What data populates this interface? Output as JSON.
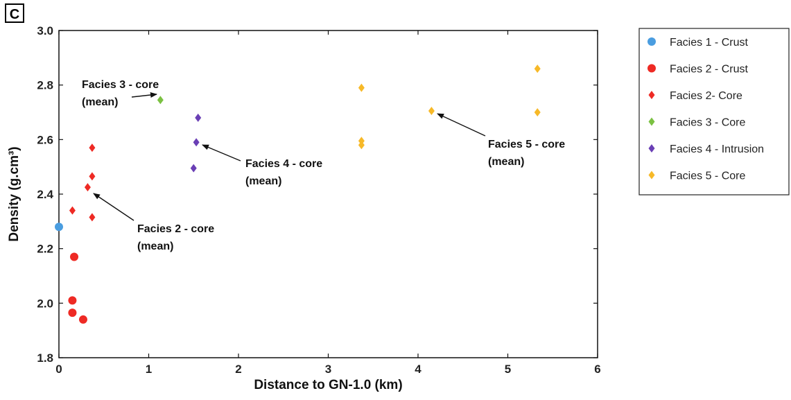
{
  "panel_label": "C",
  "chart_data": {
    "type": "scatter",
    "title": "",
    "xlabel": "Distance to GN-1.0 (km)",
    "ylabel": "Density (g.cm³)",
    "xlim": [
      0,
      6
    ],
    "ylim": [
      1.8,
      3.0
    ],
    "xticks": [
      0,
      1,
      2,
      3,
      4,
      5,
      6
    ],
    "yticks": [
      1.8,
      2.0,
      2.2,
      2.4,
      2.6,
      2.8,
      3.0
    ],
    "xtick_labels": [
      "0",
      "1",
      "2",
      "3",
      "4",
      "5",
      "6"
    ],
    "ytick_labels": [
      "1.8",
      "2.0",
      "2.2",
      "2.4",
      "2.6",
      "2.8",
      "3.0"
    ],
    "grid": false,
    "legend_position": "right",
    "series": [
      {
        "name": "Facies 1 - Crust",
        "marker": "circle",
        "color": "#4a9de0",
        "points": [
          {
            "x": 0.0,
            "y": 2.28
          }
        ]
      },
      {
        "name": "Facies 2 - Crust",
        "marker": "circle",
        "color": "#ee2a24",
        "points": [
          {
            "x": 0.17,
            "y": 2.17
          },
          {
            "x": 0.15,
            "y": 2.01
          },
          {
            "x": 0.15,
            "y": 1.965
          },
          {
            "x": 0.27,
            "y": 1.94
          }
        ]
      },
      {
        "name": "Facies 2- Core",
        "marker": "diamond",
        "color": "#ee2a24",
        "points": [
          {
            "x": 0.37,
            "y": 2.57
          },
          {
            "x": 0.37,
            "y": 2.465
          },
          {
            "x": 0.32,
            "y": 2.425
          },
          {
            "x": 0.15,
            "y": 2.34
          },
          {
            "x": 0.37,
            "y": 2.315
          }
        ]
      },
      {
        "name": "Facies 3 - Core",
        "marker": "diamond",
        "color": "#7bc142",
        "points": [
          {
            "x": 1.13,
            "y": 2.745
          }
        ]
      },
      {
        "name": "Facies 4 - Intrusion",
        "marker": "diamond",
        "color": "#6a3fb5",
        "points": [
          {
            "x": 1.55,
            "y": 2.68
          },
          {
            "x": 1.53,
            "y": 2.59
          },
          {
            "x": 1.5,
            "y": 2.495
          }
        ]
      },
      {
        "name": "Facies 5 - Core",
        "marker": "diamond",
        "color": "#f7b928",
        "points": [
          {
            "x": 3.37,
            "y": 2.79
          },
          {
            "x": 3.37,
            "y": 2.595
          },
          {
            "x": 3.37,
            "y": 2.58
          },
          {
            "x": 4.15,
            "y": 2.705
          },
          {
            "x": 5.33,
            "y": 2.86
          },
          {
            "x": 5.33,
            "y": 2.7
          }
        ]
      }
    ],
    "annotations": [
      {
        "lines": [
          "Facies 3 - core",
          "(mean)"
        ],
        "target": {
          "x": 1.13,
          "y": 2.745
        }
      },
      {
        "lines": [
          "Facies 4 - core",
          "(mean)"
        ],
        "target": {
          "x": 1.53,
          "y": 2.59
        }
      },
      {
        "lines": [
          "Facies 2 - core",
          "(mean)"
        ],
        "target": {
          "x": 0.32,
          "y": 2.425
        }
      },
      {
        "lines": [
          "Facies 5 - core",
          "(mean)"
        ],
        "target": {
          "x": 4.15,
          "y": 2.705
        }
      }
    ]
  }
}
